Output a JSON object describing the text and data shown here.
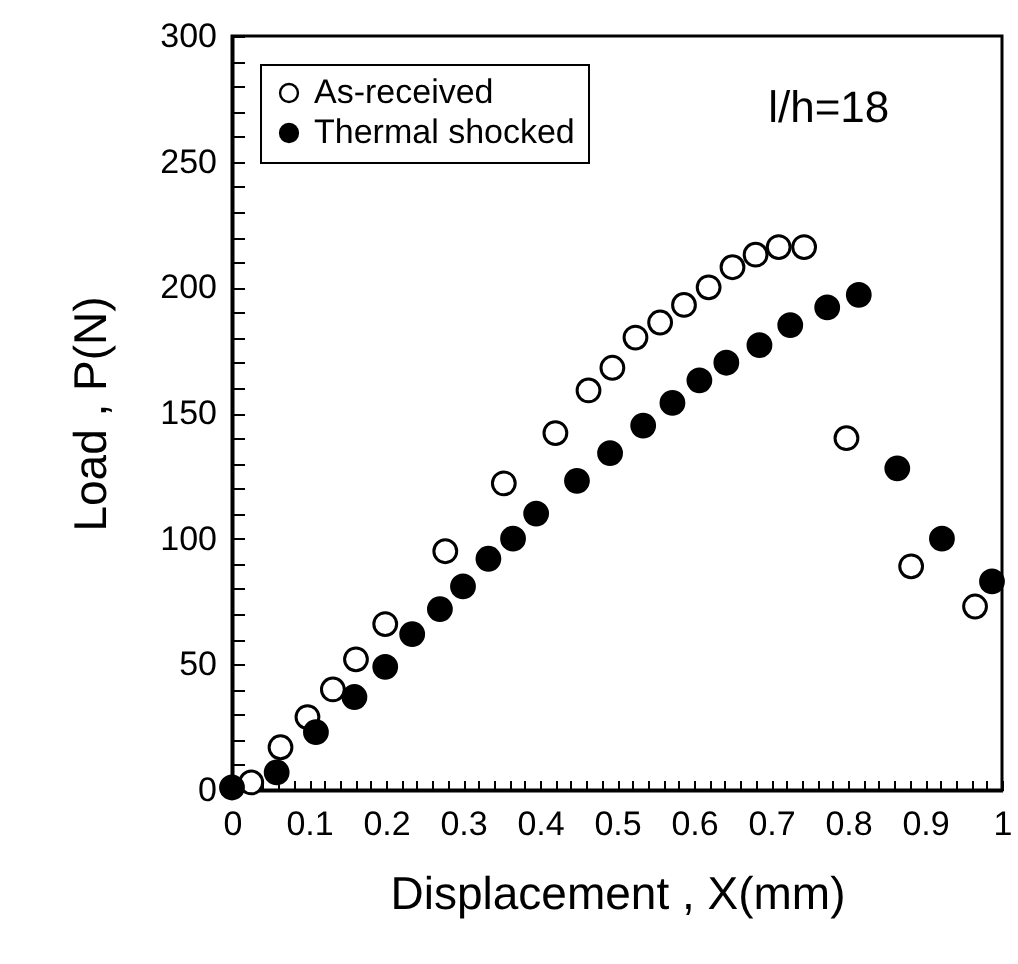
{
  "chart_data": {
    "type": "scatter",
    "xlabel": "Displacement , X(mm)",
    "ylabel": "Load , P(N)",
    "annotations": [
      "l/h=18"
    ],
    "xlim": [
      0,
      1
    ],
    "ylim": [
      0,
      300
    ],
    "xticks": [
      0,
      {
        "value": 0.02,
        "label": null
      },
      {
        "value": 0.04,
        "label": null
      },
      {
        "value": 0.06,
        "label": null
      },
      {
        "value": 0.08,
        "label": null
      },
      0.1,
      {
        "value": 0.12,
        "label": null
      },
      {
        "value": 0.14,
        "label": null
      },
      {
        "value": 0.16,
        "label": null
      },
      {
        "value": 0.18,
        "label": null
      },
      0.2,
      {
        "value": 0.22,
        "label": null
      },
      {
        "value": 0.24,
        "label": null
      },
      {
        "value": 0.26,
        "label": null
      },
      {
        "value": 0.28,
        "label": null
      },
      0.3,
      {
        "value": 0.32,
        "label": null
      },
      {
        "value": 0.34,
        "label": null
      },
      {
        "value": 0.36,
        "label": null
      },
      {
        "value": 0.38,
        "label": null
      },
      0.4,
      {
        "value": 0.42,
        "label": null
      },
      {
        "value": 0.44,
        "label": null
      },
      {
        "value": 0.46,
        "label": null
      },
      {
        "value": 0.48,
        "label": null
      },
      0.5,
      {
        "value": 0.52,
        "label": null
      },
      {
        "value": 0.54,
        "label": null
      },
      {
        "value": 0.56,
        "label": null
      },
      {
        "value": 0.58,
        "label": null
      },
      0.6,
      {
        "value": 0.62,
        "label": null
      },
      {
        "value": 0.64,
        "label": null
      },
      {
        "value": 0.66,
        "label": null
      },
      {
        "value": 0.68,
        "label": null
      },
      0.7,
      {
        "value": 0.72,
        "label": null
      },
      {
        "value": 0.74,
        "label": null
      },
      {
        "value": 0.76,
        "label": null
      },
      {
        "value": 0.78,
        "label": null
      },
      0.8,
      {
        "value": 0.82,
        "label": null
      },
      {
        "value": 0.84,
        "label": null
      },
      {
        "value": 0.86,
        "label": null
      },
      {
        "value": 0.88,
        "label": null
      },
      0.9,
      {
        "value": 0.92,
        "label": null
      },
      {
        "value": 0.94,
        "label": null
      },
      {
        "value": 0.96,
        "label": null
      },
      {
        "value": 0.98,
        "label": null
      },
      1
    ],
    "yticks": [
      0,
      {
        "value": 10,
        "label": null
      },
      {
        "value": 20,
        "label": null
      },
      {
        "value": 30,
        "label": null
      },
      {
        "value": 40,
        "label": null
      },
      50,
      {
        "value": 60,
        "label": null
      },
      {
        "value": 70,
        "label": null
      },
      {
        "value": 80,
        "label": null
      },
      {
        "value": 90,
        "label": null
      },
      100,
      {
        "value": 110,
        "label": null
      },
      {
        "value": 120,
        "label": null
      },
      {
        "value": 130,
        "label": null
      },
      {
        "value": 140,
        "label": null
      },
      150,
      {
        "value": 160,
        "label": null
      },
      {
        "value": 170,
        "label": null
      },
      {
        "value": 180,
        "label": null
      },
      {
        "value": 190,
        "label": null
      },
      200,
      {
        "value": 210,
        "label": null
      },
      {
        "value": 220,
        "label": null
      },
      {
        "value": 230,
        "label": null
      },
      {
        "value": 240,
        "label": null
      },
      250,
      {
        "value": 260,
        "label": null
      },
      {
        "value": 270,
        "label": null
      },
      {
        "value": 280,
        "label": null
      },
      {
        "value": 290,
        "label": null
      },
      300
    ],
    "marker": "circle",
    "legend": "top left",
    "grid": false,
    "series": [
      {
        "name": "As-received",
        "color": "#ffffff",
        "x": [
          0.025,
          0.063,
          0.098,
          0.131,
          0.161,
          0.199,
          0.277,
          0.353,
          0.42,
          0.463,
          0.494,
          0.524,
          0.556,
          0.587,
          0.619,
          0.65,
          0.68,
          0.71,
          0.743,
          0.798,
          0.882,
          0.965
        ],
        "values": [
          3,
          17,
          29,
          40,
          52,
          66,
          95,
          122,
          142,
          159,
          168,
          180,
          186,
          193,
          200,
          208,
          213,
          216,
          216,
          140,
          89,
          73
        ]
      },
      {
        "name": "Thermal shocked",
        "color": "#000000",
        "x": [
          0,
          0.058,
          0.109,
          0.159,
          0.199,
          0.234,
          0.27,
          0.3,
          0.333,
          0.365,
          0.395,
          0.448,
          0.491,
          0.534,
          0.572,
          0.607,
          0.642,
          0.685,
          0.725,
          0.773,
          0.814,
          0.864,
          0.922,
          0.987
        ],
        "values": [
          1,
          7,
          23,
          37,
          49,
          62,
          72,
          81,
          92,
          100,
          110,
          123,
          134,
          145,
          154,
          163,
          170,
          177,
          185,
          192,
          197,
          128,
          100,
          83
        ]
      }
    ]
  }
}
